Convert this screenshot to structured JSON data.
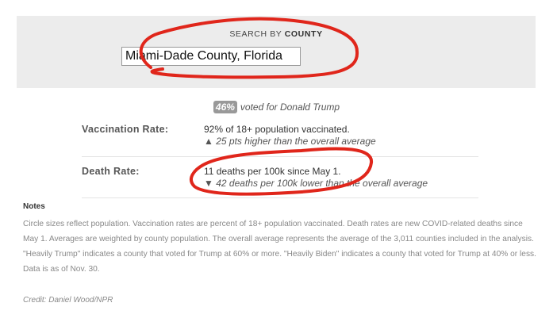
{
  "search": {
    "label_prefix": "SEARCH BY ",
    "label_bold": "COUNTY",
    "value": "Miami-Dade County, Florida"
  },
  "vote": {
    "percent": "46%",
    "text": "voted for Donald Trump"
  },
  "rows": [
    {
      "label": "Vaccination Rate:",
      "value": "92% of 18+ population vaccinated.",
      "arrow": "▲",
      "comparison": "25 pts higher than the overall average"
    },
    {
      "label": "Death Rate:",
      "value": "11 deaths per 100k since May 1.",
      "arrow": "▼",
      "comparison": "42 deaths per 100k lower than the overall average"
    }
  ],
  "notes": {
    "heading": "Notes",
    "body": "Circle sizes reflect population. Vaccination rates are percent of 18+ population vaccinated. Death rates are new COVID-related deaths since May 1. Averages are weighted by county population. The overall average represents the average of the 3,011 counties included in the analysis. \"Heavily Trump\" indicates a county that voted for Trump at 60% or more. \"Heavily Biden\" indicates a county that voted for Trump at 40% or less. Data is as of Nov. 30."
  },
  "credit": "Credit: Daniel Wood/NPR",
  "colors": {
    "panel": "#ececec",
    "badge": "#999999",
    "annotation": "#e0261b"
  }
}
